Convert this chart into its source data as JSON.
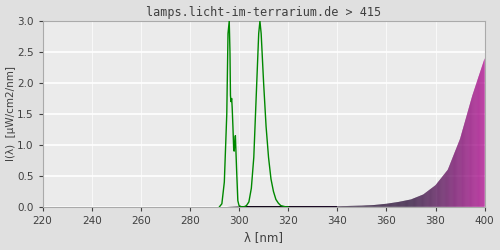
{
  "title": "lamps.licht-im-terrarium.de > 415",
  "xlabel": "λ [nm]",
  "ylabel": "I(λ)  [μW/cm2/nm]",
  "xlim": [
    220,
    400
  ],
  "ylim": [
    0.0,
    3.0
  ],
  "xticks": [
    220,
    240,
    260,
    280,
    300,
    320,
    340,
    360,
    380,
    400
  ],
  "yticks": [
    0.0,
    0.5,
    1.0,
    1.5,
    2.0,
    2.5,
    3.0
  ],
  "background_color": "#e0e0e0",
  "plot_bg_color": "#ebebeb",
  "grid_color": "#ffffff",
  "title_color": "#404040",
  "tick_color": "#404040",
  "label_color": "#404040",
  "line_color": "#008800",
  "font_family": "monospace",
  "spectrum_shape_wl": [
    220,
    285,
    290,
    295,
    300,
    310,
    320,
    330,
    340,
    350,
    355,
    360,
    365,
    370,
    375,
    380,
    385,
    390,
    395,
    400
  ],
  "spectrum_shape_y": [
    0.0,
    0.0,
    0.0,
    0.0,
    0.01,
    0.01,
    0.01,
    0.01,
    0.01,
    0.02,
    0.03,
    0.05,
    0.08,
    0.12,
    0.2,
    0.35,
    0.6,
    1.1,
    1.8,
    2.4
  ],
  "strip_wl_start": 285,
  "strip_wl_end": 400,
  "n_strips": 600,
  "uvb_line1_wl": [
    292,
    293,
    294,
    295,
    295.5,
    296,
    296.3,
    296.5,
    296.7,
    297,
    297.2,
    297.5,
    297.8,
    298,
    298.3,
    298.5,
    299,
    299.5,
    300,
    301,
    302
  ],
  "uvb_line1_y": [
    0.0,
    0.05,
    0.4,
    1.5,
    2.8,
    3.0,
    2.5,
    1.8,
    1.7,
    1.75,
    1.6,
    1.3,
    0.95,
    0.9,
    1.05,
    1.15,
    0.6,
    0.1,
    0.02,
    0.0,
    0.0
  ],
  "uvb_line2_wl": [
    301,
    302,
    303,
    304,
    305,
    306,
    307,
    308,
    308.5,
    309,
    310,
    311,
    312,
    313,
    314,
    315,
    316,
    317,
    318,
    319,
    320
  ],
  "uvb_line2_y": [
    0.0,
    0.0,
    0.02,
    0.08,
    0.3,
    0.8,
    1.8,
    2.8,
    3.0,
    2.8,
    2.0,
    1.3,
    0.8,
    0.45,
    0.25,
    0.12,
    0.06,
    0.02,
    0.01,
    0.0,
    0.0
  ]
}
